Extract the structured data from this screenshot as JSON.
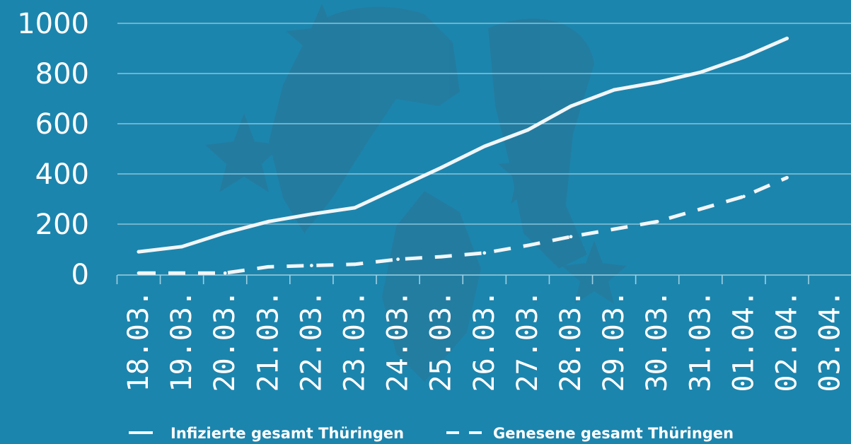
{
  "chart_data": {
    "type": "line",
    "title": "",
    "xlabel": "",
    "ylabel": "",
    "categories": [
      "18.03.",
      "19.03.",
      "20.03.",
      "21.03.",
      "22.03.",
      "23.03.",
      "24.03.",
      "25.03.",
      "26.03.",
      "27.03.",
      "28.03.",
      "29.03.",
      "30.03.",
      "31.03.",
      "01.04.",
      "02.04.",
      "03.04."
    ],
    "yticks": [
      "0",
      "200",
      "400",
      "600",
      "800",
      "1000"
    ],
    "ylim": [
      0,
      1000
    ],
    "grid": true,
    "legend_position": "bottom",
    "series": [
      {
        "name": "Infizierte gesamt Thüringen",
        "style": "solid",
        "values": [
          90,
          110,
          165,
          210,
          240,
          265,
          345,
          425,
          510,
          575,
          670,
          735,
          765,
          805,
          865,
          940,
          null
        ]
      },
      {
        "name": "Genesene gesamt Thüringen",
        "style": "dashed",
        "values": [
          5,
          5,
          5,
          30,
          35,
          40,
          60,
          70,
          85,
          115,
          150,
          180,
          210,
          260,
          310,
          385,
          null
        ]
      }
    ],
    "colors": {
      "background": "#1c85ad",
      "watermark": "#2a7697",
      "grid": "#9fd0e2",
      "line": "#f2f6f8",
      "text": "#ffffff"
    }
  }
}
